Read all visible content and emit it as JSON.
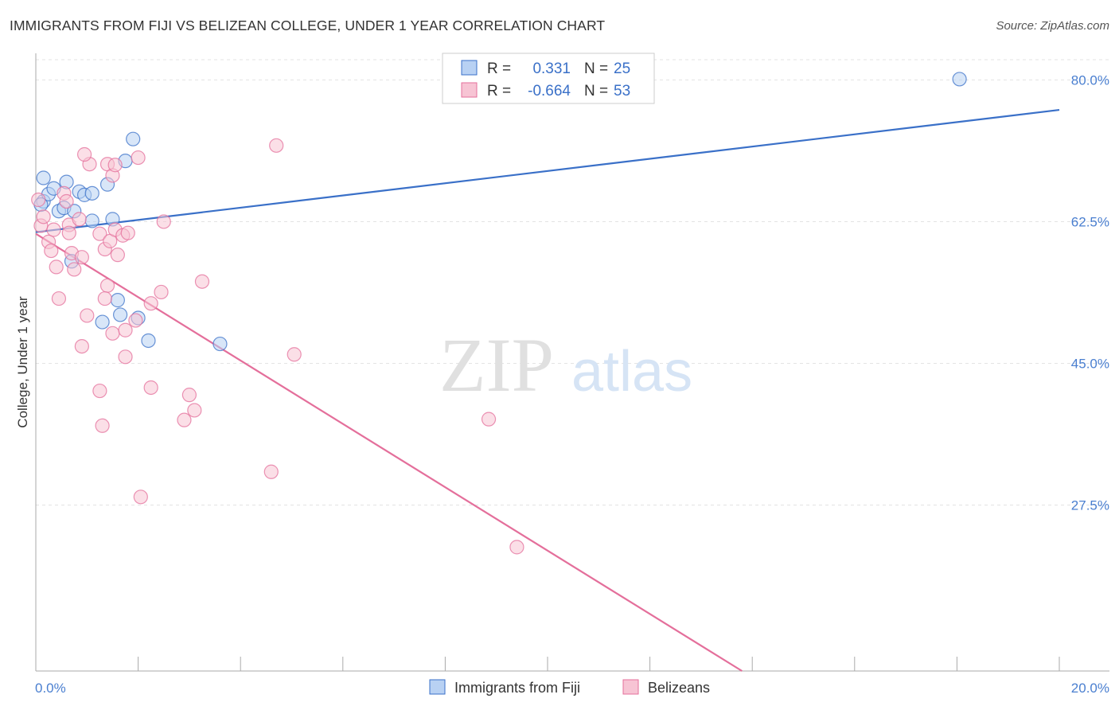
{
  "title": "IMMIGRANTS FROM FIJI VS BELIZEAN COLLEGE, UNDER 1 YEAR CORRELATION CHART",
  "source": "Source: ZipAtlas.com",
  "watermark": {
    "zip": "ZIP",
    "atlas": "atlas"
  },
  "colors": {
    "fiji": "#3a70c8",
    "belize": "#e46f9b",
    "fiji_fill": "#b8d1f3",
    "belize_fill": "#f7c4d4",
    "tick": "#4a7fd0"
  },
  "chart_data": {
    "type": "scatter",
    "title": "IMMIGRANTS FROM FIJI VS BELIZEAN COLLEGE, UNDER 1 YEAR CORRELATION CHART",
    "xlabel": "",
    "ylabel": "College, Under 1 year",
    "xlim": [
      0,
      20
    ],
    "ylim": [
      7.0,
      82.5
    ],
    "x_tick_labels": [
      "0.0%",
      "20.0%"
    ],
    "y_ticks": [
      {
        "value": 80.0,
        "label": "80.0%"
      },
      {
        "value": 62.5,
        "label": "62.5%"
      },
      {
        "value": 45.0,
        "label": "45.0%"
      },
      {
        "value": 27.5,
        "label": "27.5%"
      }
    ],
    "legend_stats": [
      {
        "r_label": "R =",
        "r_value": "0.331",
        "n_label": "N =",
        "n_value": "25"
      },
      {
        "r_label": "R =",
        "r_value": "-0.664",
        "n_label": "N =",
        "n_value": "53"
      }
    ],
    "series": [
      {
        "name": "Immigrants from Fiji",
        "color": "#3a70c8",
        "trend": {
          "x": [
            0.0,
            20.0
          ],
          "y": [
            61.2,
            76.3
          ]
        },
        "points": [
          {
            "x": 0.15,
            "y": 67.9
          },
          {
            "x": 0.15,
            "y": 65.0
          },
          {
            "x": 0.25,
            "y": 65.9
          },
          {
            "x": 0.35,
            "y": 66.6
          },
          {
            "x": 0.45,
            "y": 63.8
          },
          {
            "x": 0.6,
            "y": 67.4
          },
          {
            "x": 0.55,
            "y": 64.2
          },
          {
            "x": 0.75,
            "y": 63.8
          },
          {
            "x": 0.85,
            "y": 66.2
          },
          {
            "x": 0.95,
            "y": 65.8
          },
          {
            "x": 1.1,
            "y": 66.0
          },
          {
            "x": 1.4,
            "y": 67.1
          },
          {
            "x": 1.1,
            "y": 62.6
          },
          {
            "x": 1.5,
            "y": 62.8
          },
          {
            "x": 1.75,
            "y": 70.0
          },
          {
            "x": 1.9,
            "y": 72.7
          },
          {
            "x": 0.7,
            "y": 57.6
          },
          {
            "x": 1.6,
            "y": 52.8
          },
          {
            "x": 1.3,
            "y": 50.1
          },
          {
            "x": 1.65,
            "y": 51.0
          },
          {
            "x": 2.0,
            "y": 50.6
          },
          {
            "x": 2.2,
            "y": 47.8
          },
          {
            "x": 3.6,
            "y": 47.4
          },
          {
            "x": 18.05,
            "y": 80.1
          },
          {
            "x": 0.1,
            "y": 64.6
          }
        ]
      },
      {
        "name": "Belizeans",
        "color": "#e46f9b",
        "trend": {
          "x": [
            0.0,
            13.8
          ],
          "y": [
            61.0,
            7.0
          ]
        },
        "points": [
          {
            "x": 0.05,
            "y": 65.2
          },
          {
            "x": 0.1,
            "y": 62.0
          },
          {
            "x": 0.15,
            "y": 63.1
          },
          {
            "x": 0.25,
            "y": 60.0
          },
          {
            "x": 0.3,
            "y": 58.9
          },
          {
            "x": 0.4,
            "y": 56.9
          },
          {
            "x": 0.35,
            "y": 61.5
          },
          {
            "x": 0.45,
            "y": 53.0
          },
          {
            "x": 0.55,
            "y": 66.0
          },
          {
            "x": 0.6,
            "y": 65.0
          },
          {
            "x": 0.7,
            "y": 58.6
          },
          {
            "x": 0.75,
            "y": 56.6
          },
          {
            "x": 0.65,
            "y": 62.1
          },
          {
            "x": 0.65,
            "y": 61.1
          },
          {
            "x": 0.85,
            "y": 62.8
          },
          {
            "x": 0.9,
            "y": 58.1
          },
          {
            "x": 1.0,
            "y": 50.9
          },
          {
            "x": 0.9,
            "y": 47.1
          },
          {
            "x": 1.05,
            "y": 69.6
          },
          {
            "x": 0.95,
            "y": 70.8
          },
          {
            "x": 1.25,
            "y": 61.0
          },
          {
            "x": 1.35,
            "y": 59.1
          },
          {
            "x": 1.4,
            "y": 54.6
          },
          {
            "x": 1.45,
            "y": 60.1
          },
          {
            "x": 1.5,
            "y": 48.7
          },
          {
            "x": 1.35,
            "y": 53.0
          },
          {
            "x": 1.55,
            "y": 61.5
          },
          {
            "x": 1.4,
            "y": 69.6
          },
          {
            "x": 1.5,
            "y": 68.2
          },
          {
            "x": 1.6,
            "y": 58.4
          },
          {
            "x": 1.7,
            "y": 60.8
          },
          {
            "x": 1.75,
            "y": 49.1
          },
          {
            "x": 1.8,
            "y": 61.1
          },
          {
            "x": 1.55,
            "y": 69.5
          },
          {
            "x": 1.75,
            "y": 45.8
          },
          {
            "x": 1.95,
            "y": 50.3
          },
          {
            "x": 2.0,
            "y": 70.4
          },
          {
            "x": 2.25,
            "y": 42.0
          },
          {
            "x": 2.25,
            "y": 52.4
          },
          {
            "x": 2.45,
            "y": 53.8
          },
          {
            "x": 2.5,
            "y": 62.5
          },
          {
            "x": 1.25,
            "y": 41.6
          },
          {
            "x": 1.3,
            "y": 37.3
          },
          {
            "x": 2.9,
            "y": 38.0
          },
          {
            "x": 3.0,
            "y": 41.1
          },
          {
            "x": 3.1,
            "y": 39.2
          },
          {
            "x": 3.25,
            "y": 55.1
          },
          {
            "x": 2.05,
            "y": 28.5
          },
          {
            "x": 4.6,
            "y": 31.6
          },
          {
            "x": 4.7,
            "y": 71.9
          },
          {
            "x": 5.05,
            "y": 46.1
          },
          {
            "x": 8.85,
            "y": 38.1
          },
          {
            "x": 9.4,
            "y": 22.3
          }
        ]
      }
    ],
    "extra_points_note": "",
    "legend_position": "top-center"
  },
  "bottom_legend": [
    {
      "label": "Immigrants from Fiji"
    },
    {
      "label": "Belizeans"
    }
  ]
}
